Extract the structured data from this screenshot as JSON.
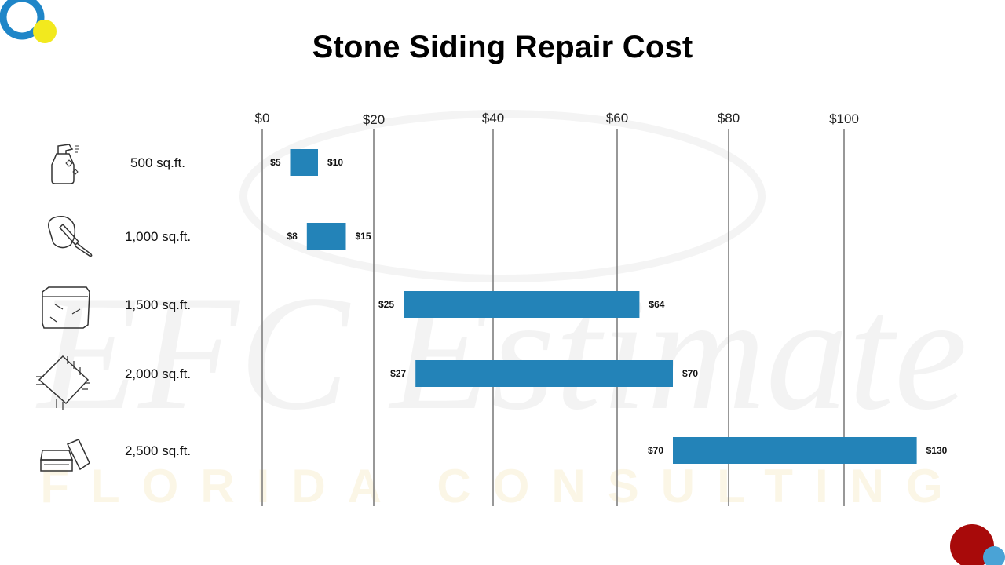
{
  "title": "Stone Siding Repair Cost",
  "colors": {
    "bar": "#2383b8",
    "gridline": "#777777",
    "logo_blue": "#1f86c8",
    "logo_yellow": "#f2e91e",
    "logo_red": "#a80a0a",
    "logo_light_blue": "#4aa3d6"
  },
  "watermark": {
    "main": "EFC Estimate",
    "sub": "FLORIDA CONSULTING"
  },
  "chart_data": {
    "type": "bar",
    "orientation": "horizontal-range",
    "title": "Stone Siding Repair Cost",
    "xlabel": "",
    "ylabel": "",
    "x_ticks": [
      "$0",
      "$20",
      "$40",
      "$60",
      "$80",
      "$100"
    ],
    "categories": [
      "500 sq.ft.",
      "1,000 sq.ft.",
      "1,500 sq.ft.",
      "2,000 sq.ft.",
      "2,500 sq.ft."
    ],
    "icons": [
      "spray-bottle-icon",
      "trowel-icon",
      "stone-block-icon",
      "stone-tile-icon",
      "stacked-stones-icon"
    ],
    "series": [
      {
        "low": [
          5,
          8,
          25,
          27,
          70
        ],
        "high": [
          10,
          15,
          64,
          70,
          130
        ],
        "low_labels": [
          "$5",
          "$8",
          "$25",
          "$27",
          "$70"
        ],
        "high_labels": [
          "$10",
          "$15",
          "$64",
          "$70",
          "$130"
        ]
      }
    ],
    "grid": true,
    "legend": "none"
  }
}
